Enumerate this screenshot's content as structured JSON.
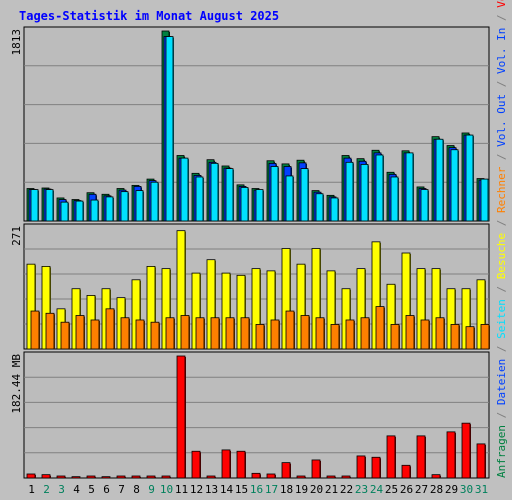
{
  "title": "Tages-Statistik im Monat August 2025",
  "colors": {
    "background": "#c0c0c0",
    "plot_bg": "#bcbcbc",
    "title": "#0000ff",
    "grid": "#808080",
    "hits": "#008040",
    "files": "#0040ff",
    "pages": "#00e0ff",
    "visits": "#ffff00",
    "hosts": "#ff8000",
    "kbytes": "#ff0000",
    "weekend_label": "#00805c",
    "weekday_label": "#000000"
  },
  "chart_data": [
    {
      "type": "bar",
      "name": "hits-files-pages",
      "ymax_label": "1813",
      "ylim": [
        0,
        1813
      ],
      "grid": true,
      "series": [
        {
          "name": "Anfragen",
          "key": "hits",
          "values": [
            310,
            315,
            220,
            205,
            270,
            255,
            310,
            340,
            400,
            1813,
            625,
            455,
            585,
            525,
            345,
            310,
            575,
            545,
            580,
            290,
            245,
            625,
            595,
            675,
            465,
            670,
            325,
            805,
            720,
            840,
            405
          ]
        },
        {
          "name": "Dateien",
          "key": "files",
          "values": [
            300,
            305,
            205,
            195,
            255,
            240,
            295,
            330,
            385,
            1760,
            600,
            435,
            560,
            505,
            330,
            295,
            550,
            520,
            555,
            275,
            230,
            600,
            570,
            650,
            445,
            650,
            310,
            780,
            700,
            820,
            390
          ]
        },
        {
          "name": "Seiten",
          "key": "pages",
          "values": [
            300,
            300,
            180,
            190,
            200,
            230,
            280,
            290,
            370,
            1760,
            600,
            420,
            550,
            500,
            320,
            300,
            520,
            430,
            500,
            260,
            220,
            560,
            540,
            630,
            420,
            650,
            300,
            780,
            680,
            820,
            400
          ]
        }
      ]
    },
    {
      "type": "bar",
      "name": "visits-hosts",
      "ymax_label": "271",
      "ylim": [
        0,
        271
      ],
      "grid": true,
      "series": [
        {
          "name": "Besuche",
          "key": "visits",
          "values": [
            190,
            185,
            90,
            135,
            120,
            135,
            115,
            155,
            185,
            180,
            265,
            170,
            200,
            170,
            165,
            180,
            175,
            225,
            190,
            225,
            175,
            135,
            180,
            240,
            145,
            215,
            180,
            180,
            135,
            135,
            155
          ]
        },
        {
          "name": "Rechner",
          "key": "hosts",
          "values": [
            85,
            80,
            60,
            75,
            65,
            90,
            70,
            65,
            60,
            70,
            75,
            70,
            70,
            70,
            70,
            55,
            65,
            85,
            75,
            70,
            55,
            65,
            70,
            95,
            55,
            75,
            65,
            70,
            55,
            50,
            55
          ]
        }
      ]
    },
    {
      "type": "bar",
      "name": "volume",
      "ymax_label": "182.44 MB",
      "ylim": [
        0,
        182.44
      ],
      "grid": true,
      "series": [
        {
          "name": "Volumen",
          "key": "kbytes",
          "values": [
            6,
            5,
            3,
            2,
            3,
            2,
            3,
            3,
            3,
            3,
            182.44,
            40,
            3,
            42,
            40,
            7,
            6,
            23,
            3,
            27,
            3,
            3,
            33,
            31,
            63,
            19,
            63,
            5,
            69,
            82,
            51
          ]
        }
      ]
    }
  ],
  "legend": [
    {
      "text": "Anfragen",
      "key": "hits"
    },
    {
      "text": "/",
      "key": "grid"
    },
    {
      "text": "Dateien",
      "key": "files"
    },
    {
      "text": "/",
      "key": "grid"
    },
    {
      "text": "Seiten",
      "key": "pages"
    },
    {
      "text": "/",
      "key": "grid"
    },
    {
      "text": "Besuche",
      "key": "visits"
    },
    {
      "text": "/",
      "key": "grid"
    },
    {
      "text": "Rechner",
      "key": "hosts"
    },
    {
      "text": "/",
      "key": "grid"
    },
    {
      "text": "Vol. Out",
      "key": "files"
    },
    {
      "text": "/",
      "key": "grid"
    },
    {
      "text": "Vol. In",
      "key": "files"
    },
    {
      "text": "/",
      "key": "grid"
    },
    {
      "text": "Volumen",
      "key": "kbytes"
    }
  ],
  "days": [
    "1",
    "2",
    "3",
    "4",
    "5",
    "6",
    "7",
    "8",
    "9",
    "10",
    "11",
    "12",
    "13",
    "14",
    "15",
    "16",
    "17",
    "18",
    "19",
    "20",
    "21",
    "22",
    "23",
    "24",
    "25",
    "26",
    "27",
    "28",
    "29",
    "30",
    "31"
  ],
  "weekend_days": [
    2,
    3,
    9,
    10,
    16,
    17,
    23,
    24,
    30,
    31
  ]
}
